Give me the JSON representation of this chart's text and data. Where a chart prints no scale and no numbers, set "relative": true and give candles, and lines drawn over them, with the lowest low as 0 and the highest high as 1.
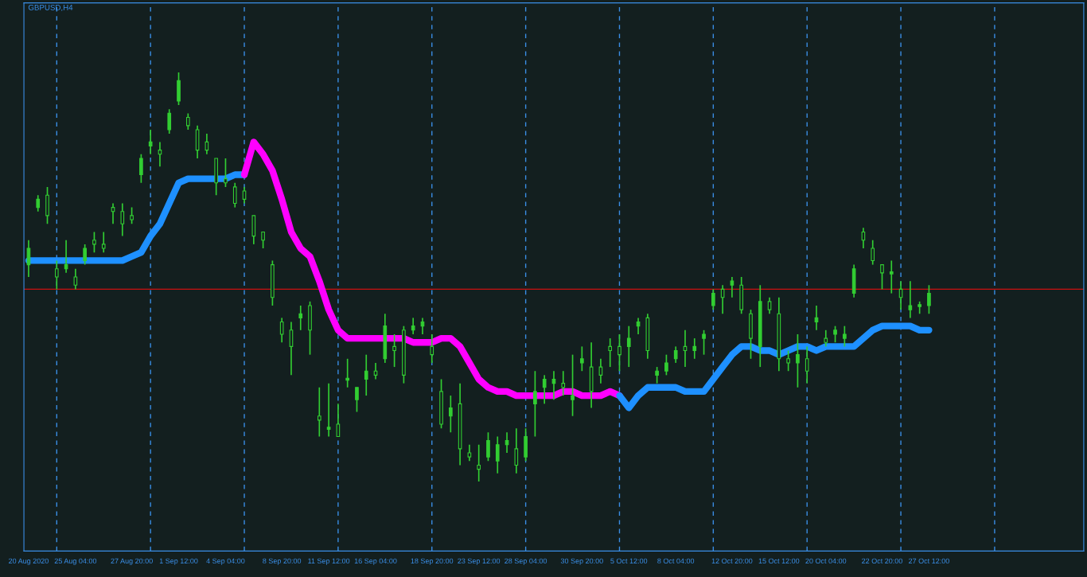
{
  "chart_data": {
    "type": "candlestick",
    "title": "GBPUSD,H4",
    "relative": true,
    "categories": [
      "20 Aug 2020",
      null,
      null,
      null,
      null,
      "25 Aug 04:00",
      null,
      null,
      null,
      null,
      null,
      "27 Aug 20:00",
      null,
      null,
      null,
      null,
      "1 Sep 12:00",
      null,
      null,
      null,
      null,
      "4 Sep 04:00",
      null,
      null,
      null,
      null,
      null,
      "8 Sep 20:00",
      null,
      null,
      null,
      null,
      "11 Sep 12:00",
      null,
      null,
      null,
      null,
      "16 Sep 04:00",
      null,
      null,
      null,
      null,
      null,
      "18 Sep 20:00",
      null,
      null,
      null,
      null,
      "23 Sep 12:00",
      null,
      null,
      null,
      null,
      "28 Sep 04:00",
      null,
      null,
      null,
      null,
      null,
      "30 Sep 20:00",
      null,
      null,
      null,
      null,
      "5 Oct 12:00",
      null,
      null,
      null,
      null,
      "8 Oct 04:00",
      null,
      null,
      null,
      null,
      null,
      "12 Oct 20:00",
      null,
      null,
      null,
      null,
      "15 Oct 12:00",
      null,
      null,
      null,
      null,
      "20 Oct 04:00",
      null,
      null,
      null,
      null,
      null,
      "22 Oct 20:00",
      null,
      null,
      null,
      null,
      "27 Oct 12:00",
      null,
      null,
      null,
      null,
      null,
      null,
      null,
      null,
      null,
      null,
      null,
      null,
      null,
      null,
      null,
      null
    ],
    "tick_labels": "x",
    "ref_lines": [
      {
        "axis": "y",
        "value": 0.47,
        "color": "#cc1010",
        "line_style": "solid"
      }
    ],
    "series": [
      {
        "color": "#32cd32",
        "ohlc": [
          [
            0.53,
            0.59,
            0.5,
            0.57
          ],
          [
            0.67,
            0.7,
            0.66,
            0.69
          ],
          [
            0.7,
            0.72,
            0.63,
            0.65
          ],
          [
            0.52,
            0.54,
            0.47,
            0.5
          ],
          [
            0.52,
            0.59,
            0.51,
            0.53
          ],
          [
            0.5,
            0.52,
            0.47,
            0.48
          ],
          [
            0.54,
            0.58,
            0.53,
            0.57
          ],
          [
            0.59,
            0.61,
            0.56,
            0.58
          ],
          [
            0.58,
            0.61,
            0.56,
            0.57
          ],
          [
            0.67,
            0.68,
            0.63,
            0.66
          ],
          [
            0.66,
            0.68,
            0.6,
            0.63
          ],
          [
            0.65,
            0.67,
            0.63,
            0.64
          ],
          [
            0.75,
            0.8,
            0.73,
            0.79
          ],
          [
            0.82,
            0.86,
            0.8,
            0.83
          ],
          [
            0.81,
            0.83,
            0.77,
            0.8
          ],
          [
            0.86,
            0.91,
            0.85,
            0.9
          ],
          [
            0.93,
            1.0,
            0.92,
            0.98
          ],
          [
            0.89,
            0.9,
            0.86,
            0.87
          ],
          [
            0.86,
            0.87,
            0.79,
            0.81
          ],
          [
            0.83,
            0.85,
            0.8,
            0.81
          ],
          [
            0.79,
            0.79,
            0.7,
            0.73
          ],
          [
            0.74,
            0.79,
            0.72,
            0.73
          ],
          [
            0.72,
            0.73,
            0.67,
            0.68
          ],
          [
            0.71,
            0.72,
            0.68,
            0.69
          ],
          [
            0.65,
            0.65,
            0.58,
            0.6
          ],
          [
            0.61,
            0.61,
            0.57,
            0.59
          ],
          [
            0.53,
            0.54,
            0.43,
            0.45
          ],
          [
            0.39,
            0.4,
            0.34,
            0.36
          ],
          [
            0.37,
            0.39,
            0.26,
            0.33
          ],
          [
            0.4,
            0.43,
            0.37,
            0.41
          ],
          [
            0.43,
            0.44,
            0.31,
            0.37
          ],
          [
            0.16,
            0.23,
            0.11,
            0.15
          ],
          [
            0.13,
            0.24,
            0.11,
            0.13
          ],
          [
            0.14,
            0.19,
            0.11,
            0.11
          ],
          [
            0.25,
            0.3,
            0.23,
            0.25
          ],
          [
            0.2,
            0.23,
            0.17,
            0.23
          ],
          [
            0.25,
            0.31,
            0.21,
            0.27
          ],
          [
            0.27,
            0.29,
            0.25,
            0.26
          ],
          [
            0.3,
            0.41,
            0.29,
            0.38
          ],
          [
            0.33,
            0.36,
            0.28,
            0.32
          ],
          [
            0.37,
            0.38,
            0.24,
            0.26
          ],
          [
            0.37,
            0.4,
            0.36,
            0.38
          ],
          [
            0.38,
            0.4,
            0.36,
            0.39
          ],
          [
            0.33,
            0.36,
            0.29,
            0.31
          ],
          [
            0.22,
            0.25,
            0.13,
            0.14
          ],
          [
            0.16,
            0.21,
            0.12,
            0.18
          ],
          [
            0.19,
            0.24,
            0.04,
            0.08
          ],
          [
            0.07,
            0.09,
            0.05,
            0.06
          ],
          [
            0.04,
            0.09,
            0.0,
            0.03
          ],
          [
            0.06,
            0.12,
            0.05,
            0.1
          ],
          [
            0.05,
            0.11,
            0.02,
            0.09
          ],
          [
            0.09,
            0.12,
            0.07,
            0.1
          ],
          [
            0.08,
            0.13,
            0.02,
            0.04
          ],
          [
            0.06,
            0.13,
            0.05,
            0.11
          ],
          [
            0.19,
            0.27,
            0.11,
            0.22
          ],
          [
            0.23,
            0.26,
            0.19,
            0.25
          ],
          [
            0.24,
            0.27,
            0.2,
            0.25
          ],
          [
            0.24,
            0.27,
            0.21,
            0.23
          ],
          [
            0.2,
            0.31,
            0.16,
            0.21
          ],
          [
            0.29,
            0.33,
            0.27,
            0.3
          ],
          [
            0.28,
            0.34,
            0.18,
            0.22
          ],
          [
            0.28,
            0.3,
            0.24,
            0.26
          ],
          [
            0.33,
            0.35,
            0.28,
            0.32
          ],
          [
            0.33,
            0.36,
            0.27,
            0.31
          ],
          [
            0.33,
            0.38,
            0.28,
            0.35
          ],
          [
            0.38,
            0.4,
            0.36,
            0.39
          ],
          [
            0.4,
            0.41,
            0.3,
            0.32
          ],
          [
            0.26,
            0.28,
            0.24,
            0.27
          ],
          [
            0.27,
            0.31,
            0.26,
            0.29
          ],
          [
            0.3,
            0.33,
            0.29,
            0.32
          ],
          [
            0.33,
            0.37,
            0.28,
            0.32
          ],
          [
            0.32,
            0.35,
            0.3,
            0.33
          ],
          [
            0.35,
            0.37,
            0.31,
            0.36
          ],
          [
            0.43,
            0.47,
            0.42,
            0.46
          ],
          [
            0.47,
            0.48,
            0.41,
            0.45
          ],
          [
            0.48,
            0.5,
            0.45,
            0.49
          ],
          [
            0.48,
            0.5,
            0.41,
            0.42
          ],
          [
            0.41,
            0.42,
            0.3,
            0.35
          ],
          [
            0.33,
            0.48,
            0.28,
            0.44
          ],
          [
            0.44,
            0.45,
            0.41,
            0.42
          ],
          [
            0.41,
            0.45,
            0.27,
            0.3
          ],
          [
            0.3,
            0.32,
            0.27,
            0.29
          ],
          [
            0.29,
            0.36,
            0.23,
            0.31
          ],
          [
            0.3,
            0.33,
            0.24,
            0.27
          ],
          [
            0.39,
            0.43,
            0.37,
            0.4
          ],
          [
            0.35,
            0.37,
            0.33,
            0.34
          ],
          [
            0.36,
            0.38,
            0.34,
            0.37
          ],
          [
            0.35,
            0.38,
            0.33,
            0.36
          ],
          [
            0.46,
            0.53,
            0.45,
            0.52
          ],
          [
            0.61,
            0.62,
            0.57,
            0.59
          ],
          [
            0.57,
            0.59,
            0.53,
            0.54
          ],
          [
            0.53,
            0.53,
            0.47,
            0.51
          ],
          [
            0.51,
            0.54,
            0.46,
            0.51
          ],
          [
            0.47,
            0.49,
            0.42,
            0.45
          ],
          [
            0.42,
            0.49,
            0.4,
            0.43
          ],
          [
            0.43,
            0.44,
            0.41,
            0.43
          ],
          [
            0.43,
            0.48,
            0.41,
            0.46
          ],
          null,
          null,
          null,
          null,
          null,
          null,
          null,
          null,
          null,
          null,
          null,
          null,
          null,
          null,
          null,
          null
        ]
      },
      {
        "type": "line",
        "color": "#1e90ff",
        "values": [
          0.54,
          0.54,
          0.54,
          0.54,
          0.54,
          0.54,
          0.54,
          0.54,
          0.54,
          0.54,
          0.54,
          0.55,
          0.56,
          0.6,
          0.63,
          0.68,
          0.73,
          0.74,
          0.74,
          0.74,
          0.74,
          0.74,
          0.75,
          0.75,
          null,
          null,
          null,
          null,
          null,
          null,
          null,
          null,
          null,
          null,
          null,
          null,
          null,
          null,
          null,
          null,
          null,
          null,
          null,
          null,
          null,
          null,
          null,
          null,
          null,
          null,
          null,
          null,
          null,
          null,
          null,
          null,
          null,
          null,
          null,
          null,
          null,
          null,
          null,
          null,
          null,
          null,
          null,
          null,
          null,
          null,
          null,
          null,
          null,
          null,
          null,
          null,
          null,
          null,
          null,
          null,
          null,
          null,
          null,
          null,
          null,
          null,
          null,
          null,
          null,
          null,
          null,
          null,
          null,
          null,
          null,
          null,
          null,
          null,
          null,
          null,
          null,
          null,
          null,
          null,
          null,
          null,
          null,
          null,
          null,
          null,
          null,
          null,
          null
        ]
      },
      {
        "type": "line",
        "color": "#ff00ff",
        "values": [
          null,
          null,
          null,
          null,
          null,
          null,
          null,
          null,
          null,
          null,
          null,
          null,
          null,
          null,
          null,
          null,
          null,
          null,
          null,
          null,
          null,
          null,
          null,
          0.75,
          0.83,
          0.8,
          0.76,
          0.69,
          0.61,
          0.57,
          0.55,
          0.49,
          0.42,
          0.37,
          0.35,
          0.35,
          0.35,
          0.35,
          0.35,
          0.35,
          0.35,
          0.34,
          0.34,
          0.34,
          0.35,
          0.35,
          0.33,
          0.29,
          0.25,
          0.23,
          0.22,
          0.22,
          0.21,
          0.21,
          0.21,
          0.21,
          0.21,
          0.22,
          0.22,
          0.21,
          0.21,
          0.21,
          0.22,
          0.21,
          null,
          null,
          null,
          null,
          null,
          null,
          null,
          null,
          null,
          null,
          null,
          null,
          null,
          null,
          null,
          null,
          null,
          null,
          null,
          null,
          null,
          null,
          null,
          null,
          null,
          null,
          null,
          null,
          null,
          null,
          null,
          null,
          null,
          null,
          null,
          null,
          null,
          null,
          null,
          null,
          null,
          null,
          null,
          null,
          null,
          null,
          null,
          null,
          null
        ]
      },
      {
        "type": "line",
        "color": "#1e90ff",
        "values": [
          null,
          null,
          null,
          null,
          null,
          null,
          null,
          null,
          null,
          null,
          null,
          null,
          null,
          null,
          null,
          null,
          null,
          null,
          null,
          null,
          null,
          null,
          null,
          null,
          null,
          null,
          null,
          null,
          null,
          null,
          null,
          null,
          null,
          null,
          null,
          null,
          null,
          null,
          null,
          null,
          null,
          null,
          null,
          null,
          null,
          null,
          null,
          null,
          null,
          null,
          null,
          null,
          null,
          null,
          null,
          null,
          null,
          null,
          null,
          null,
          null,
          null,
          null,
          0.21,
          0.18,
          0.21,
          0.23,
          0.23,
          0.23,
          0.23,
          0.22,
          0.22,
          0.22,
          0.25,
          0.28,
          0.31,
          0.33,
          0.33,
          0.32,
          0.32,
          0.31,
          0.32,
          0.33,
          0.33,
          0.32,
          0.33,
          0.33,
          0.33,
          0.33,
          0.35,
          0.37,
          0.38,
          0.38,
          0.38,
          0.38,
          0.37,
          0.37,
          null,
          null,
          null,
          null,
          null,
          null,
          null,
          null,
          null,
          null,
          null,
          null,
          null,
          null,
          null,
          null
        ]
      }
    ]
  }
}
